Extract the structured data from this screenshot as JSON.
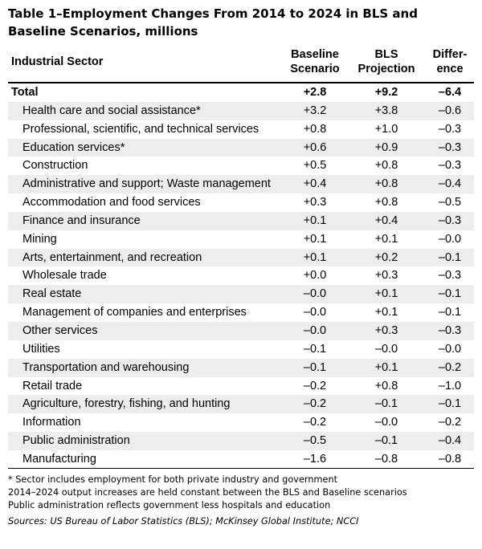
{
  "title": "Table 1–Employment Changes From 2014 to 2024 in BLS and Baseline Scenarios, millions",
  "headers": {
    "sector": "Industrial Sector",
    "baseline_line1": "Baseline",
    "baseline_line2": "Scenario",
    "bls_line1": "BLS",
    "bls_line2": "Projection",
    "diff_line1": "Differ-",
    "diff_line2": "ence"
  },
  "total": {
    "label": "Total",
    "baseline": "+2.8",
    "bls": "+9.2",
    "diff": "–6.4"
  },
  "rows": [
    {
      "label": "Health care and social assistance*",
      "baseline": "+3.2",
      "bls": "+3.8",
      "diff": "–0.6"
    },
    {
      "label": "Professional, scientific, and technical services",
      "baseline": "+0.8",
      "bls": "+1.0",
      "diff": "–0.3"
    },
    {
      "label": "Education services*",
      "baseline": "+0.6",
      "bls": "+0.9",
      "diff": "–0.3"
    },
    {
      "label": "Construction",
      "baseline": "+0.5",
      "bls": "+0.8",
      "diff": "–0.3"
    },
    {
      "label": "Administrative and support; Waste management",
      "baseline": "+0.4",
      "bls": "+0.8",
      "diff": "–0.4"
    },
    {
      "label": "Accommodation and food services",
      "baseline": "+0.3",
      "bls": "+0.8",
      "diff": "–0.5"
    },
    {
      "label": "Finance and insurance",
      "baseline": "+0.1",
      "bls": "+0.4",
      "diff": "–0.3"
    },
    {
      "label": "Mining",
      "baseline": "+0.1",
      "bls": "+0.1",
      "diff": "–0.0"
    },
    {
      "label": "Arts, entertainment, and recreation",
      "baseline": "+0.1",
      "bls": "+0.2",
      "diff": "–0.1"
    },
    {
      "label": "Wholesale trade",
      "baseline": "+0.0",
      "bls": "+0.3",
      "diff": "–0.3"
    },
    {
      "label": "Real estate",
      "baseline": "–0.0",
      "bls": "+0.1",
      "diff": "–0.1"
    },
    {
      "label": "Management of companies and enterprises",
      "baseline": "–0.0",
      "bls": "+0.1",
      "diff": "–0.1"
    },
    {
      "label": "Other services",
      "baseline": "–0.0",
      "bls": "+0.3",
      "diff": "–0.3"
    },
    {
      "label": "Utilities",
      "baseline": "–0.1",
      "bls": "–0.0",
      "diff": "–0.0"
    },
    {
      "label": "Transportation and warehousing",
      "baseline": "–0.1",
      "bls": "+0.1",
      "diff": "–0.2"
    },
    {
      "label": "Retail trade",
      "baseline": "–0.2",
      "bls": "+0.8",
      "diff": "–1.0"
    },
    {
      "label": "Agriculture, forestry, fishing, and hunting",
      "baseline": "–0.2",
      "bls": "–0.1",
      "diff": "–0.1"
    },
    {
      "label": "Information",
      "baseline": "–0.2",
      "bls": "–0.0",
      "diff": "–0.2"
    },
    {
      "label": "Public administration",
      "baseline": "–0.5",
      "bls": "–0.1",
      "diff": "–0.4"
    },
    {
      "label": "Manufacturing",
      "baseline": "–1.6",
      "bls": "–0.8",
      "diff": "–0.8"
    }
  ],
  "notes": {
    "note1": "* Sector includes employment for both private industry and government",
    "note2": "2014–2024 output increases are held constant between the BLS and Baseline scenarios",
    "note3": "Public administration reflects government less hospitals and education",
    "source": "Sources: US Bureau of Labor Statistics (BLS); McKinsey Global Institute; NCCI"
  },
  "colors": {
    "shaded_row": "#ededed",
    "rule": "#000000"
  }
}
